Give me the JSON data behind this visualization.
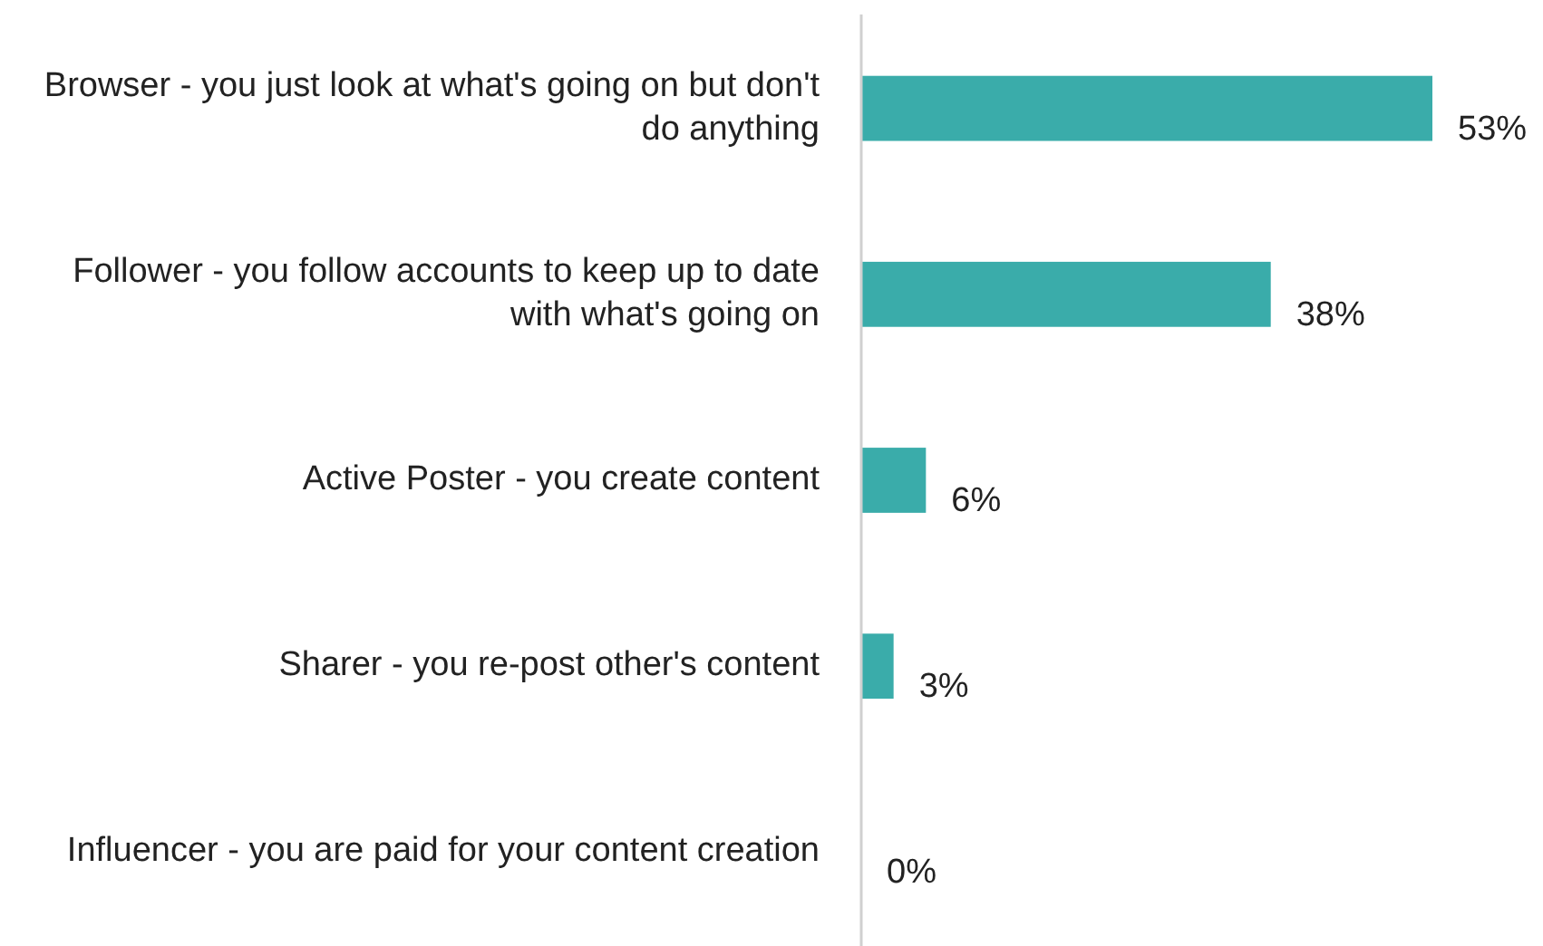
{
  "chart_data": {
    "type": "bar",
    "orientation": "horizontal",
    "categories": [
      "Browser - you just look at what's going on but don't do anything",
      "Follower - you follow accounts to keep up to date with what's going on",
      "Active Poster - you create content",
      "Sharer - you re-post other's content",
      "Influencer - you are paid for your content creation"
    ],
    "values": [
      53,
      38,
      6,
      3,
      0
    ],
    "value_labels": [
      "53%",
      "38%",
      "6%",
      "3%",
      "0%"
    ],
    "color": "#3aacaa"
  }
}
